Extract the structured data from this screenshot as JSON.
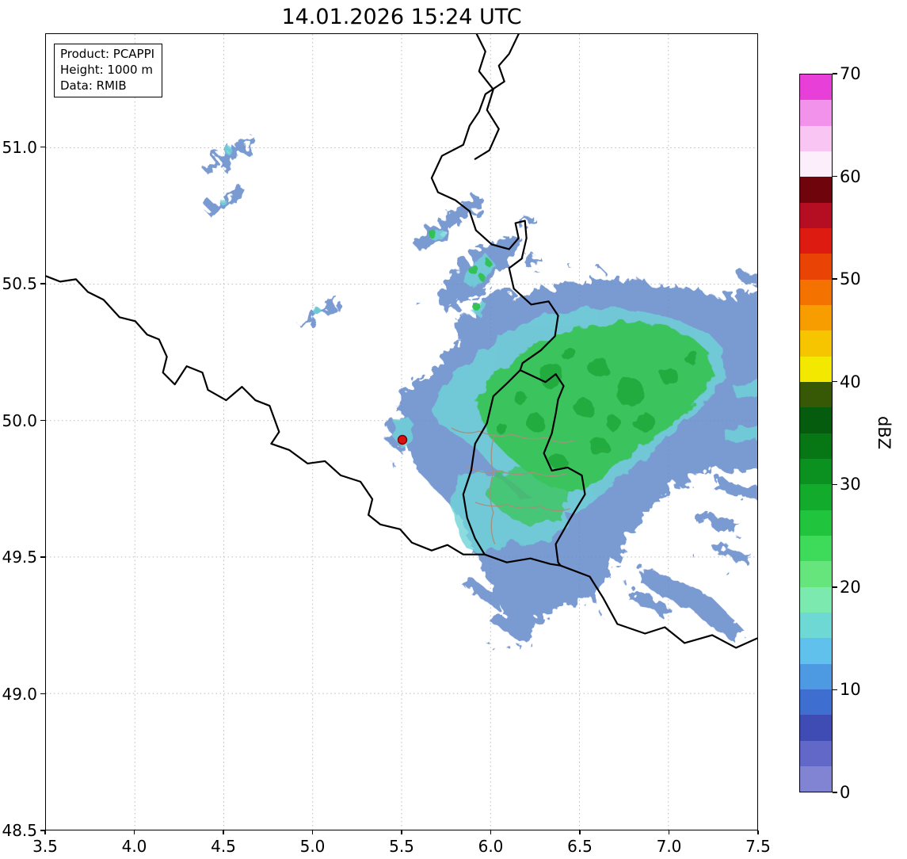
{
  "title": "14.01.2026 15:24 UTC",
  "info_box": {
    "lines": [
      "Product: PCAPPI",
      "Height: 1000 m",
      "Data: RMIB"
    ]
  },
  "axes": {
    "x_ticks": [
      "3.5",
      "4.0",
      "4.5",
      "5.0",
      "5.5",
      "6.0",
      "6.5",
      "7.0",
      "7.5"
    ],
    "y_ticks": [
      "51.0",
      "50.5",
      "50.0",
      "49.5",
      "49.0",
      "48.5"
    ],
    "x_range": [
      3.5,
      7.5
    ],
    "y_range": [
      48.5,
      51.42
    ]
  },
  "colorbar": {
    "label": "dBZ",
    "min": 0,
    "max": 70,
    "tick_labels": [
      "70",
      "60",
      "50",
      "40",
      "30",
      "20",
      "10",
      "0"
    ],
    "segments_bottom_to_top": [
      "#8184d2",
      "#6268c8",
      "#3f4cb4",
      "#3e6fd0",
      "#4d9ae2",
      "#60c1ec",
      "#6ed8d4",
      "#7ce9ae",
      "#66e57c",
      "#3eda5a",
      "#20c43d",
      "#12ab2b",
      "#0b911f",
      "#077615",
      "#055c0e",
      "#375804",
      "#f3e800",
      "#f6c500",
      "#f79d00",
      "#f37200",
      "#e94405",
      "#dd1b11",
      "#b50e22",
      "#6f040d",
      "#fdeefc",
      "#f9c6f4",
      "#f392ea",
      "#e93fd9"
    ]
  },
  "map": {
    "radar_marker": {
      "lon": 5.5,
      "lat": 49.92,
      "color": "#dd1111"
    },
    "colors": {
      "country_border": "#000000",
      "province_border": "#a5907c",
      "grid": "#bbbbbb",
      "precip_blue": "#6389cb",
      "precip_cyan": "#6fd3d8",
      "precip_green": "#39c457",
      "precip_dark_green": "#0f9426"
    }
  },
  "chart_data": {
    "type": "heatmap",
    "title": "14.01.2026 15:24 UTC",
    "xlabel": "",
    "ylabel": "",
    "x_range": [
      3.5,
      7.5
    ],
    "y_range": [
      48.5,
      51.42
    ],
    "grid": true,
    "colorbar_label": "dBZ",
    "colorbar_range": [
      0,
      70
    ],
    "radar_site": {
      "lon": 5.5,
      "lat": 49.92
    },
    "precipitation_regions": [
      {
        "area": "large eastern system core",
        "lon": [
          5.95,
          7.3
        ],
        "lat": [
          49.75,
          50.25
        ],
        "dbz": [
          20,
          35
        ]
      },
      {
        "area": "eastern system fringe",
        "lon": [
          5.55,
          7.5
        ],
        "lat": [
          49.4,
          50.4
        ],
        "dbz": [
          5,
          20
        ]
      },
      {
        "area": "southwest band near radar site",
        "lon": [
          5.45,
          6.3
        ],
        "lat": [
          49.2,
          49.95
        ],
        "dbz": [
          5,
          20
        ]
      },
      {
        "area": "northern cluster",
        "lon": [
          5.55,
          6.25
        ],
        "lat": [
          50.3,
          50.85
        ],
        "dbz": [
          5,
          25
        ]
      },
      {
        "area": "northwest small echoes",
        "lon": [
          4.35,
          4.7
        ],
        "lat": [
          50.8,
          51.05
        ],
        "dbz": [
          5,
          15
        ]
      },
      {
        "area": "central-west small echo",
        "lon": [
          4.85,
          5.2
        ],
        "lat": [
          50.3,
          50.5
        ],
        "dbz": [
          5,
          12
        ]
      },
      {
        "area": "southeast streaks",
        "lon": [
          6.6,
          7.45
        ],
        "lat": [
          49.1,
          49.6
        ],
        "dbz": [
          5,
          15
        ]
      }
    ]
  }
}
